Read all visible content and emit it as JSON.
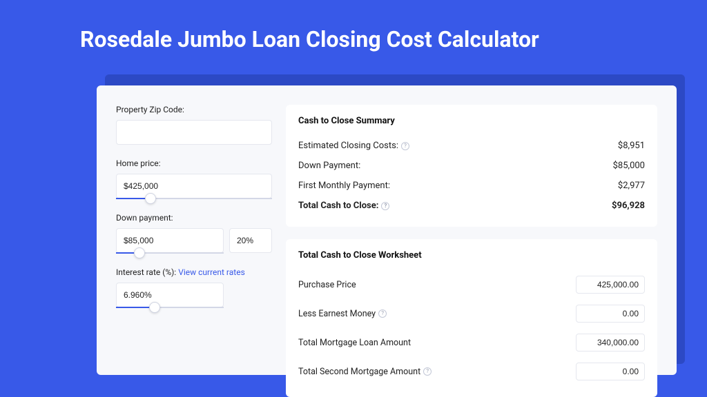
{
  "colors": {
    "page_bg": "#3859e8",
    "shadow_panel": "#2c49c5",
    "panel_bg": "#f7f8fb",
    "card_bg": "#ffffff",
    "border": "#e5e7ee",
    "text": "#222222",
    "link": "#3859e8",
    "slider_track": "#d3d7e6",
    "slider_fill": "#3859e8"
  },
  "title": "Rosedale Jumbo Loan Closing Cost Calculator",
  "form": {
    "zip": {
      "label": "Property Zip Code:",
      "value": ""
    },
    "home_price": {
      "label": "Home price:",
      "value": "$425,000",
      "slider_pct": 22
    },
    "down_payment": {
      "label": "Down payment:",
      "value": "$85,000",
      "percent": "20%",
      "slider_pct": 22
    },
    "interest_rate": {
      "label": "Interest rate (%):",
      "link_text": "View current rates",
      "value": "6.960%",
      "slider_pct": 36
    }
  },
  "summary": {
    "title": "Cash to Close Summary",
    "rows": [
      {
        "label": "Estimated Closing Costs:",
        "help": true,
        "value": "$8,951",
        "bold": false
      },
      {
        "label": "Down Payment:",
        "help": false,
        "value": "$85,000",
        "bold": false
      },
      {
        "label": "First Monthly Payment:",
        "help": false,
        "value": "$2,977",
        "bold": false
      },
      {
        "label": "Total Cash to Close:",
        "help": true,
        "value": "$96,928",
        "bold": true
      }
    ]
  },
  "worksheet": {
    "title": "Total Cash to Close Worksheet",
    "rows": [
      {
        "label": "Purchase Price",
        "help": false,
        "value": "425,000.00"
      },
      {
        "label": "Less Earnest Money",
        "help": true,
        "value": "0.00"
      },
      {
        "label": "Total Mortgage Loan Amount",
        "help": false,
        "value": "340,000.00"
      },
      {
        "label": "Total Second Mortgage Amount",
        "help": true,
        "value": "0.00"
      }
    ]
  }
}
